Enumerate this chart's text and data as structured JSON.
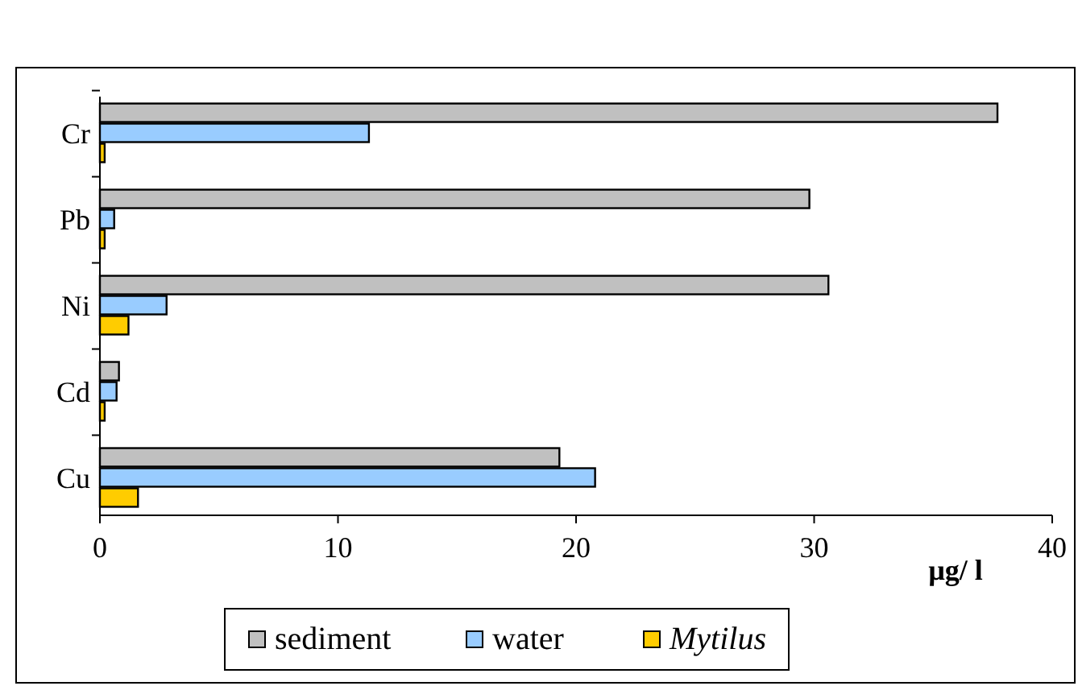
{
  "chart_data": {
    "type": "bar",
    "orientation": "horizontal",
    "categories": [
      "Cr",
      "Pb",
      "Ni",
      "Cd",
      "Cu"
    ],
    "xlabel": "µg/ l",
    "xlim": [
      0,
      40
    ],
    "xticks": [
      0,
      10,
      20,
      30,
      40
    ],
    "grid": false,
    "legend": "bottom",
    "series": [
      {
        "name": "sediment",
        "color": "#c0c0c0",
        "values": [
          37.7,
          29.8,
          30.6,
          0.8,
          19.3
        ]
      },
      {
        "name": "water",
        "color": "#99ccff",
        "values": [
          11.3,
          0.6,
          2.8,
          0.7,
          20.8
        ]
      },
      {
        "name": "Mytilus",
        "color": "#ffcc00",
        "values": [
          0.2,
          0.2,
          1.2,
          0.2,
          1.6
        ]
      }
    ]
  }
}
